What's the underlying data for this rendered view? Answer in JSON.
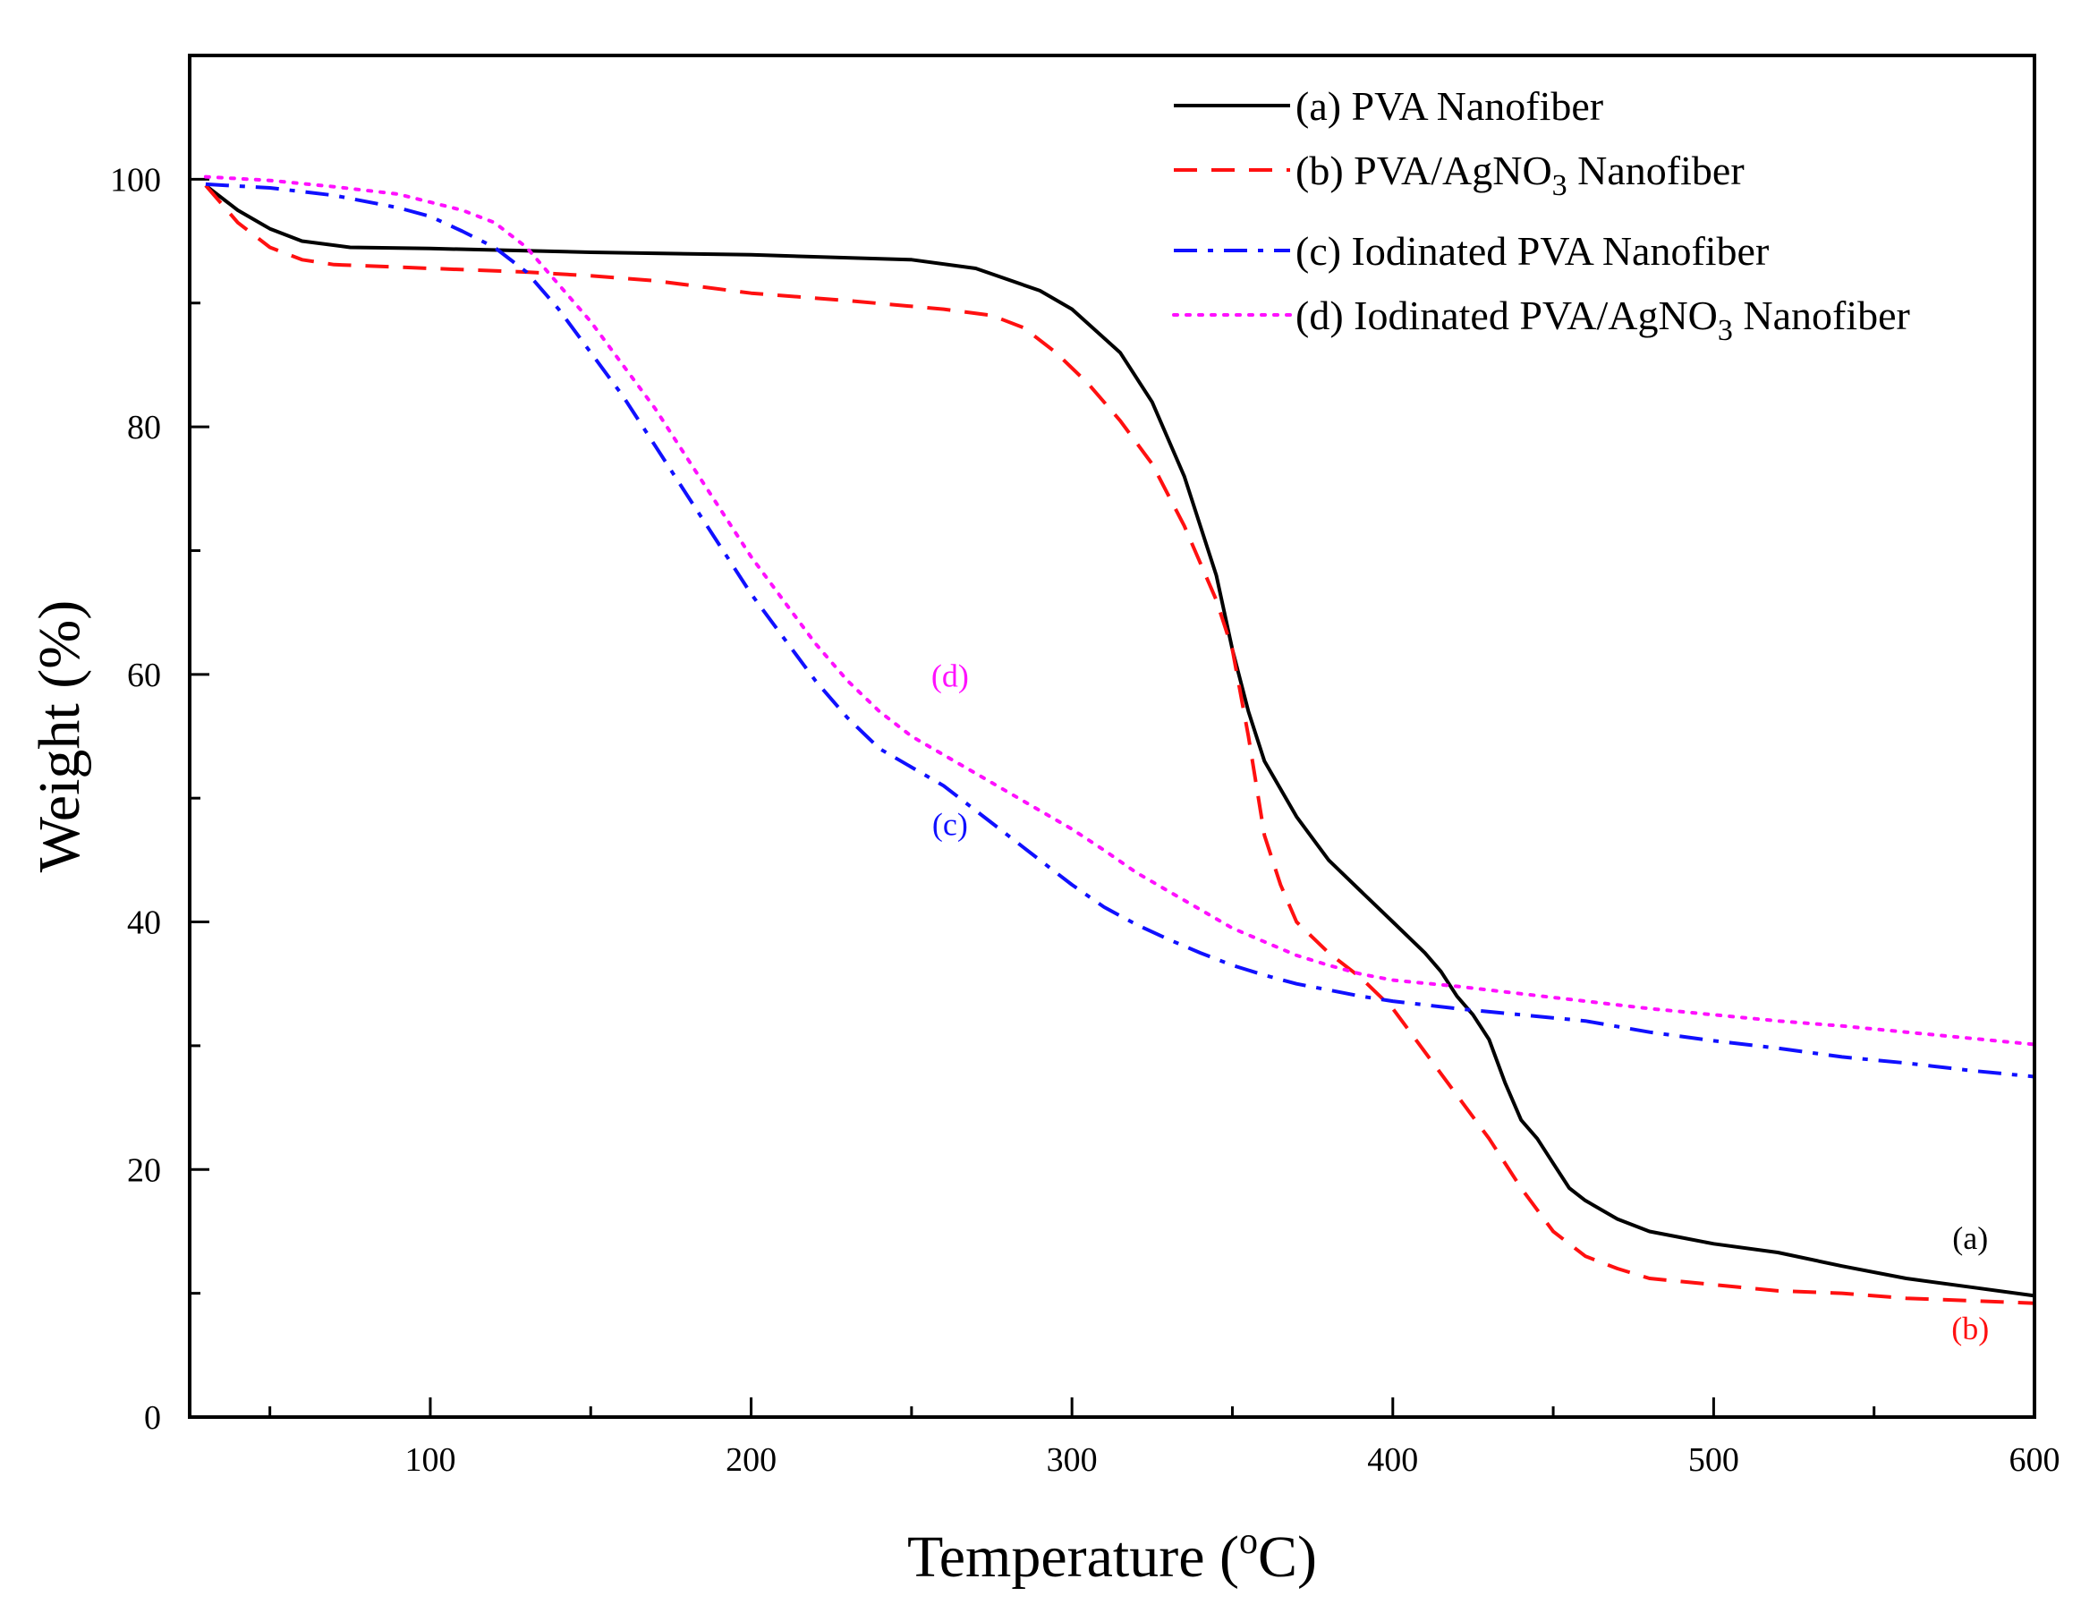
{
  "chart_data": {
    "type": "line",
    "title": "",
    "xlabel": {
      "main": "Temperature (",
      "sup": "o",
      "end": "C)"
    },
    "ylabel": "Weight (%)",
    "xlim": [
      25,
      600
    ],
    "ylim": [
      0,
      110
    ],
    "xticks": [
      100,
      200,
      300,
      400,
      500,
      600
    ],
    "yticks": [
      0,
      20,
      40,
      60,
      80,
      100
    ],
    "xminor": [
      50,
      150,
      250,
      350,
      450,
      550
    ],
    "yminor": [
      10,
      30,
      50,
      70,
      90
    ],
    "legend_position": "top-right",
    "series": [
      {
        "id": "a",
        "label": {
          "main": "(a) PVA Nanofiber"
        },
        "color": "#000000",
        "style": "solid",
        "points": [
          [
            30,
            99.5
          ],
          [
            40,
            97.5
          ],
          [
            50,
            96
          ],
          [
            60,
            95
          ],
          [
            75,
            94.5
          ],
          [
            100,
            94.4
          ],
          [
            150,
            94.1
          ],
          [
            200,
            93.9
          ],
          [
            250,
            93.5
          ],
          [
            270,
            92.8
          ],
          [
            290,
            91
          ],
          [
            300,
            89.5
          ],
          [
            315,
            86
          ],
          [
            325,
            82
          ],
          [
            335,
            76
          ],
          [
            345,
            68
          ],
          [
            350,
            62
          ],
          [
            355,
            57
          ],
          [
            360,
            53
          ],
          [
            370,
            48.5
          ],
          [
            380,
            45
          ],
          [
            390,
            42.5
          ],
          [
            400,
            40
          ],
          [
            410,
            37.5
          ],
          [
            415,
            36
          ],
          [
            420,
            34
          ],
          [
            425,
            32.5
          ],
          [
            430,
            30.5
          ],
          [
            435,
            27
          ],
          [
            440,
            24
          ],
          [
            445,
            22.5
          ],
          [
            450,
            20.5
          ],
          [
            455,
            18.5
          ],
          [
            460,
            17.5
          ],
          [
            470,
            16
          ],
          [
            480,
            15
          ],
          [
            490,
            14.5
          ],
          [
            500,
            14
          ],
          [
            520,
            13.3
          ],
          [
            540,
            12.2
          ],
          [
            560,
            11.2
          ],
          [
            580,
            10.5
          ],
          [
            600,
            9.8
          ]
        ]
      },
      {
        "id": "b",
        "label": {
          "main": "(b) PVA/AgNO",
          "sub": "3",
          "end": " Nanofiber"
        },
        "color": "#ff1010",
        "style": "dashed",
        "points": [
          [
            30,
            99.5
          ],
          [
            40,
            96.5
          ],
          [
            50,
            94.5
          ],
          [
            60,
            93.5
          ],
          [
            70,
            93.1
          ],
          [
            100,
            92.8
          ],
          [
            130,
            92.5
          ],
          [
            150,
            92.2
          ],
          [
            170,
            91.8
          ],
          [
            200,
            90.8
          ],
          [
            230,
            90.2
          ],
          [
            260,
            89.5
          ],
          [
            275,
            89
          ],
          [
            285,
            88
          ],
          [
            295,
            86
          ],
          [
            305,
            83.5
          ],
          [
            315,
            80.5
          ],
          [
            325,
            77
          ],
          [
            335,
            72
          ],
          [
            345,
            66
          ],
          [
            350,
            62
          ],
          [
            355,
            55
          ],
          [
            360,
            47
          ],
          [
            365,
            43
          ],
          [
            370,
            40
          ],
          [
            380,
            37.5
          ],
          [
            390,
            35.5
          ],
          [
            400,
            33
          ],
          [
            410,
            29.5
          ],
          [
            420,
            26
          ],
          [
            430,
            22.5
          ],
          [
            440,
            18.5
          ],
          [
            450,
            15
          ],
          [
            460,
            13
          ],
          [
            470,
            12
          ],
          [
            480,
            11.2
          ],
          [
            500,
            10.7
          ],
          [
            520,
            10.2
          ],
          [
            540,
            10
          ],
          [
            560,
            9.6
          ],
          [
            580,
            9.4
          ],
          [
            600,
            9.2
          ]
        ]
      },
      {
        "id": "c",
        "label": {
          "main": "(c) Iodinated PVA Nanofiber"
        },
        "color": "#1010ff",
        "style": "dashdot",
        "points": [
          [
            30,
            99.6
          ],
          [
            50,
            99.3
          ],
          [
            70,
            98.7
          ],
          [
            90,
            97.7
          ],
          [
            100,
            97
          ],
          [
            110,
            95.8
          ],
          [
            120,
            94.5
          ],
          [
            130,
            92.5
          ],
          [
            140,
            89.5
          ],
          [
            150,
            86
          ],
          [
            160,
            82.5
          ],
          [
            170,
            78.5
          ],
          [
            180,
            74.5
          ],
          [
            190,
            70.5
          ],
          [
            200,
            66.5
          ],
          [
            210,
            63
          ],
          [
            220,
            59.5
          ],
          [
            230,
            56.5
          ],
          [
            240,
            54
          ],
          [
            250,
            52.5
          ],
          [
            260,
            51
          ],
          [
            270,
            49
          ],
          [
            280,
            47
          ],
          [
            290,
            45
          ],
          [
            300,
            43
          ],
          [
            310,
            41.2
          ],
          [
            320,
            39.8
          ],
          [
            330,
            38.6
          ],
          [
            340,
            37.5
          ],
          [
            350,
            36.5
          ],
          [
            360,
            35.7
          ],
          [
            370,
            35
          ],
          [
            380,
            34.5
          ],
          [
            390,
            34
          ],
          [
            400,
            33.6
          ],
          [
            420,
            33
          ],
          [
            440,
            32.5
          ],
          [
            460,
            32
          ],
          [
            480,
            31.1
          ],
          [
            500,
            30.4
          ],
          [
            520,
            29.8
          ],
          [
            540,
            29.1
          ],
          [
            560,
            28.6
          ],
          [
            580,
            28
          ],
          [
            600,
            27.5
          ]
        ]
      },
      {
        "id": "d",
        "label": {
          "main": "(d) Iodinated PVA/AgNO",
          "sub": "3",
          "end": " Nanofiber"
        },
        "color": "#ff10ff",
        "style": "dotted",
        "points": [
          [
            30,
            100.2
          ],
          [
            50,
            99.9
          ],
          [
            70,
            99.4
          ],
          [
            90,
            98.8
          ],
          [
            110,
            97.5
          ],
          [
            120,
            96.5
          ],
          [
            130,
            94.5
          ],
          [
            140,
            91.5
          ],
          [
            150,
            88.5
          ],
          [
            160,
            85
          ],
          [
            170,
            81.5
          ],
          [
            180,
            77.5
          ],
          [
            190,
            73.5
          ],
          [
            200,
            69.5
          ],
          [
            210,
            66
          ],
          [
            220,
            62.5
          ],
          [
            230,
            59.5
          ],
          [
            240,
            57
          ],
          [
            250,
            55
          ],
          [
            260,
            53.5
          ],
          [
            270,
            52
          ],
          [
            280,
            50.5
          ],
          [
            290,
            49
          ],
          [
            300,
            47.5
          ],
          [
            310,
            45.8
          ],
          [
            320,
            44
          ],
          [
            330,
            42.5
          ],
          [
            340,
            41
          ],
          [
            350,
            39.5
          ],
          [
            360,
            38.4
          ],
          [
            370,
            37.3
          ],
          [
            380,
            36.5
          ],
          [
            390,
            35.8
          ],
          [
            400,
            35.3
          ],
          [
            420,
            34.8
          ],
          [
            440,
            34.2
          ],
          [
            460,
            33.6
          ],
          [
            480,
            33
          ],
          [
            500,
            32.5
          ],
          [
            520,
            32
          ],
          [
            540,
            31.6
          ],
          [
            560,
            31.1
          ],
          [
            580,
            30.6
          ],
          [
            600,
            30.1
          ]
        ]
      }
    ],
    "annotations": [
      {
        "text": "(a)",
        "x": 580,
        "y": 13.6,
        "color": "#000000"
      },
      {
        "text": "(b)",
        "x": 580,
        "y": 6.3,
        "color": "#ff1010"
      },
      {
        "text": "(c)",
        "x": 262,
        "y": 47,
        "color": "#1010ff"
      },
      {
        "text": "(d)",
        "x": 262,
        "y": 59,
        "color": "#ff10ff"
      }
    ]
  }
}
